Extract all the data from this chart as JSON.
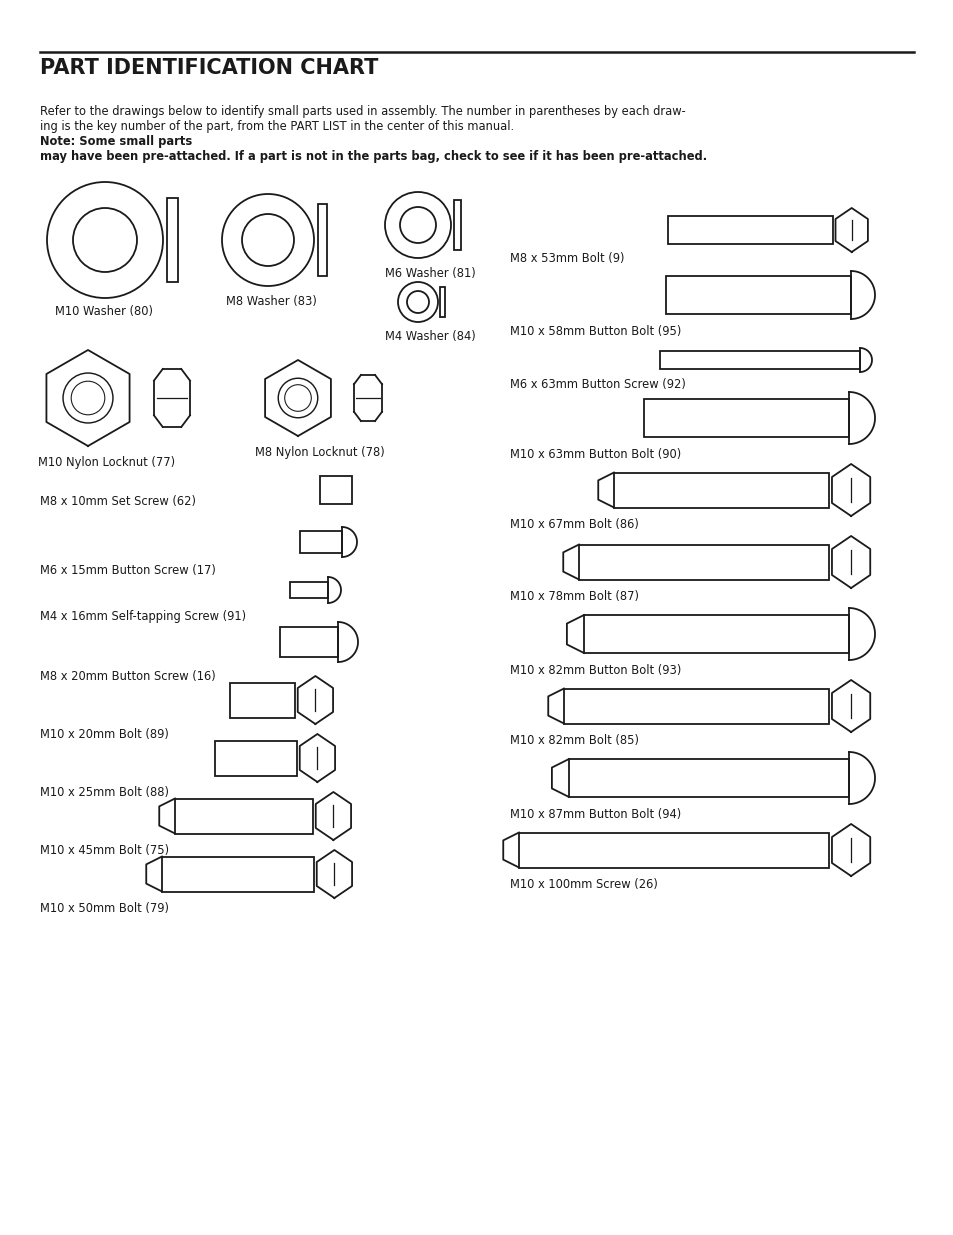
{
  "title": "PART IDENTIFICATION CHART",
  "desc_normal": "Refer to the drawings below to identify small parts used in assembly. The number in parentheses by each draw-\ning is the key number of the part, from the PART LIST in the center of this manual. ",
  "desc_bold": "Note: Some small parts\nmay have been pre-attached. If a part is not in the parts bag, check to see if it has been pre-attached.",
  "bg_color": "#ffffff",
  "line_color": "#1a1a1a",
  "text_color": "#1a1a1a"
}
